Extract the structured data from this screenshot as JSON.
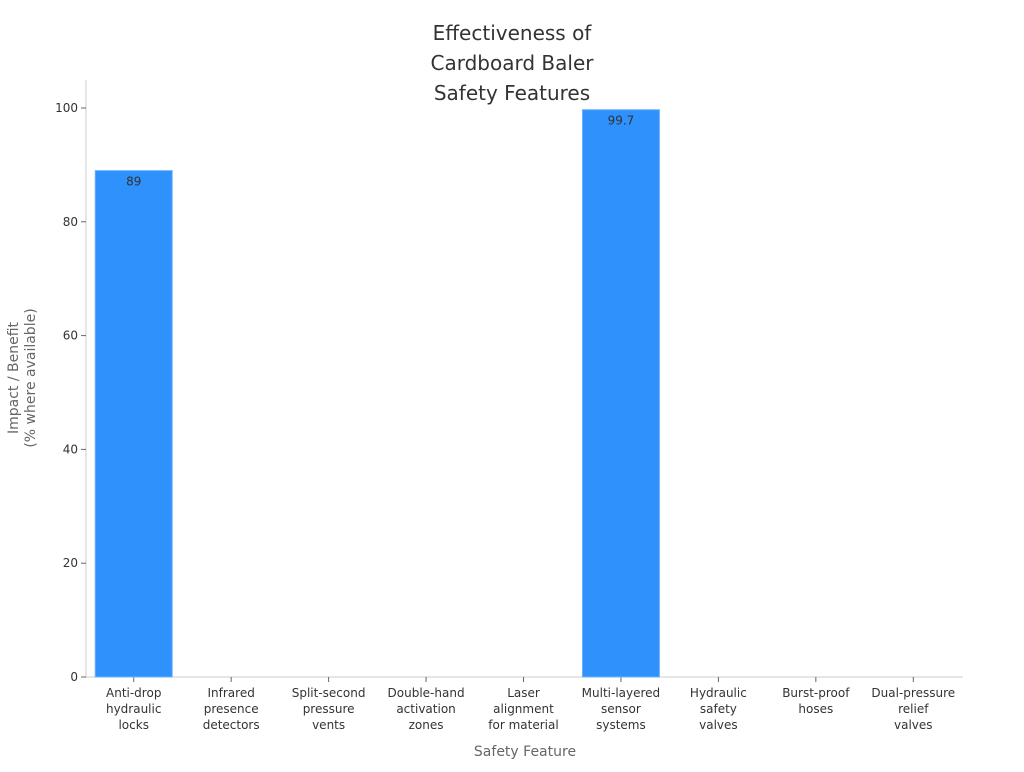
{
  "chart_data": {
    "type": "bar",
    "title": [
      "Effectiveness of",
      "Cardboard Baler",
      "Safety Features"
    ],
    "xlabel": "Safety Feature",
    "ylabel": [
      "Impact / Benefit",
      "(% where available)"
    ],
    "categories": [
      [
        "Anti-drop",
        "hydraulic",
        "locks"
      ],
      [
        "Infrared",
        "presence",
        "detectors"
      ],
      [
        "Split-second",
        "pressure",
        "vents"
      ],
      [
        "Double-hand",
        "activation",
        "zones"
      ],
      [
        "Laser",
        "alignment",
        "for material"
      ],
      [
        "Multi-layered",
        "sensor",
        "systems"
      ],
      [
        "Hydraulic",
        "safety",
        "valves"
      ],
      [
        "Burst-proof",
        "hoses"
      ],
      [
        "Dual-pressure",
        "relief",
        "valves"
      ]
    ],
    "values": [
      89,
      null,
      null,
      null,
      null,
      99.7,
      null,
      null,
      null
    ],
    "data_labels": [
      "89",
      "",
      "",
      "",
      "",
      "99.7",
      "",
      "",
      ""
    ],
    "ylim": [
      0,
      105
    ],
    "yticks": [
      0,
      20,
      40,
      60,
      80,
      100
    ],
    "grid": false,
    "bar_color": "#2e91fc",
    "legend": "none"
  }
}
